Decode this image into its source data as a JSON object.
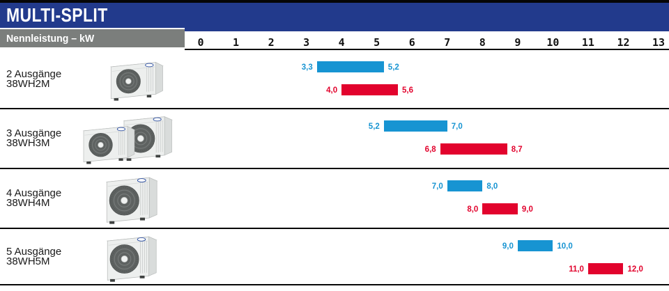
{
  "page": {
    "title_bar": "MULTI-SPLIT",
    "axis_label": "Nennleistung – kW"
  },
  "scale": {
    "unit": "kW",
    "min": 0,
    "max": 13,
    "ticks": [
      "0",
      "1",
      "2",
      "3",
      "4",
      "5",
      "6",
      "7",
      "8",
      "9",
      "10",
      "11",
      "12",
      "13"
    ]
  },
  "colors": {
    "header_blue": "#223A8C",
    "band_gray": "#7B7E7C",
    "range_blue": "#1794D2",
    "range_red": "#E2032D"
  },
  "rows": [
    {
      "label": "2 Ausgänge",
      "model": "38WH2M",
      "image": "outdoor-unit-photo",
      "blue": {
        "start": 3.3,
        "end": 5.2,
        "start_label": "3,3",
        "end_label": "5,2"
      },
      "red": {
        "start": 4.0,
        "end": 5.6,
        "start_label": "4,0",
        "end_label": "5,6"
      }
    },
    {
      "label": "3 Ausgänge",
      "model": "38WH3M",
      "image": "two-outdoor-units-photo",
      "blue": {
        "start": 5.2,
        "end": 7.0,
        "start_label": "5,2",
        "end_label": "7,0"
      },
      "red": {
        "start": 6.8,
        "end": 8.7,
        "start_label": "6,8",
        "end_label": "8,7"
      }
    },
    {
      "label": "4 Ausgänge",
      "model": "38WH4M",
      "image": "outdoor-unit-photo",
      "blue": {
        "start": 7.0,
        "end": 8.0,
        "start_label": "7,0",
        "end_label": "8,0"
      },
      "red": {
        "start": 8.0,
        "end": 9.0,
        "start_label": "8,0",
        "end_label": "9,0"
      }
    },
    {
      "label": "5 Ausgänge",
      "model": "38WH5M",
      "image": "outdoor-unit-photo",
      "blue": {
        "start": 9.0,
        "end": 10.0,
        "start_label": "9,0",
        "end_label": "10,0"
      },
      "red": {
        "start": 11.0,
        "end": 12.0,
        "start_label": "11,0",
        "end_label": "12,0"
      }
    }
  ],
  "chart_data": {
    "type": "bar",
    "subtype": "horizontal-range-bars",
    "title": "MULTI-SPLIT",
    "xlabel": "Nennleistung – kW",
    "xlim": [
      0,
      13
    ],
    "xticks": [
      0,
      1,
      2,
      3,
      4,
      5,
      6,
      7,
      8,
      9,
      10,
      11,
      12,
      13
    ],
    "grid": false,
    "legend_position": "none",
    "categories": [
      "2 Ausgänge 38WH2M",
      "3 Ausgänge 38WH3M",
      "4 Ausgänge 38WH4M",
      "5 Ausgänge 38WH5M"
    ],
    "series": [
      {
        "name": "blue-range",
        "color": "#1794D2",
        "ranges": [
          [
            3.3,
            5.2
          ],
          [
            5.2,
            7.0
          ],
          [
            7.0,
            8.0
          ],
          [
            9.0,
            10.0
          ]
        ]
      },
      {
        "name": "red-range",
        "color": "#E2032D",
        "ranges": [
          [
            4.0,
            5.6
          ],
          [
            6.8,
            8.7
          ],
          [
            8.0,
            9.0
          ],
          [
            11.0,
            12.0
          ]
        ]
      }
    ]
  }
}
